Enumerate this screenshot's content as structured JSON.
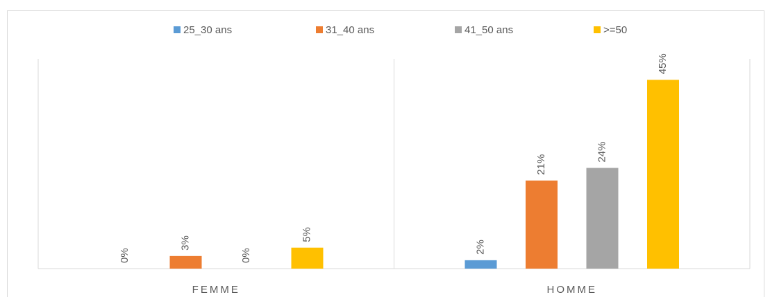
{
  "chart_data": {
    "type": "bar",
    "categories": [
      "FEMME",
      "HOMME"
    ],
    "series": [
      {
        "name": "25_30 ans",
        "color": "#5b9bd5",
        "values": [
          0,
          2
        ],
        "value_labels": [
          "0%",
          "2%"
        ]
      },
      {
        "name": "31_40 ans",
        "color": "#ed7d31",
        "values": [
          3,
          21
        ],
        "value_labels": [
          "3%",
          "21%"
        ]
      },
      {
        "name": "41_50 ans",
        "color": "#a5a5a5",
        "values": [
          0,
          24
        ],
        "value_labels": [
          "0%",
          "24%"
        ]
      },
      {
        "name": ">=50",
        "color": "#ffc000",
        "values": [
          5,
          45
        ],
        "value_labels": [
          "5%",
          "45%"
        ]
      }
    ],
    "ylim": [
      0,
      50
    ],
    "legend": "top"
  }
}
